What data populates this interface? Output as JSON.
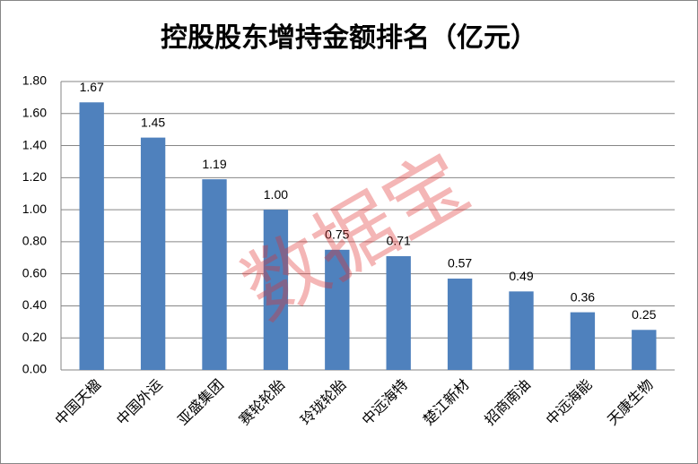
{
  "chart_data": {
    "type": "bar",
    "title": "控股股东增持金额排名（亿元）",
    "categories": [
      "中国天楹",
      "中国外运",
      "亚盛集团",
      "赛轮轮胎",
      "玲珑轮胎",
      "中远海特",
      "楚江新材",
      "招商南油",
      "中远海能",
      "天康生物"
    ],
    "values": [
      1.67,
      1.45,
      1.19,
      1.0,
      0.75,
      0.71,
      0.57,
      0.49,
      0.36,
      0.25
    ],
    "value_labels": [
      "1.67",
      "1.45",
      "1.19",
      "1.00",
      "0.75",
      "0.71",
      "0.57",
      "0.49",
      "0.36",
      "0.25"
    ],
    "color": "#4f81bd",
    "ylim": [
      0,
      1.8
    ],
    "yticks": [
      {
        "value": 0,
        "label": "0.00"
      },
      {
        "value": 0.2,
        "label": "0.20"
      },
      {
        "value": 0.4,
        "label": "0.40"
      },
      {
        "value": 0.6,
        "label": "0.60"
      },
      {
        "value": 0.8,
        "label": "0.80"
      },
      {
        "value": 1.0,
        "label": "1.00"
      },
      {
        "value": 1.2,
        "label": "1.20"
      },
      {
        "value": 1.4,
        "label": "1.40"
      },
      {
        "value": 1.6,
        "label": "1.60"
      },
      {
        "value": 1.8,
        "label": "1.80"
      }
    ],
    "grid": true,
    "watermark": "数据宝"
  }
}
